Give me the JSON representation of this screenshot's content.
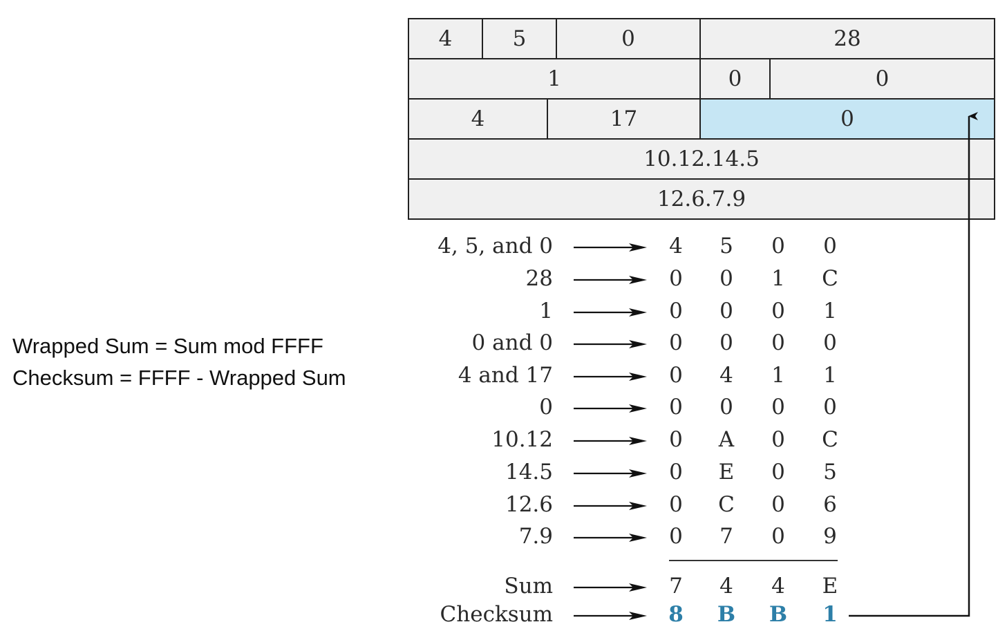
{
  "notes": {
    "line1": "Wrapped Sum = Sum mod FFFF",
    "line2": "Checksum = FFFF - Wrapped Sum"
  },
  "header": {
    "row1": [
      "4",
      "5",
      "0",
      "28"
    ],
    "row2": [
      "1",
      "0",
      "0"
    ],
    "row3": [
      "4",
      "17",
      "0"
    ],
    "row4": [
      "10.12.14.5"
    ],
    "row5": [
      "12.6.7.9"
    ]
  },
  "rows": [
    {
      "label": "4, 5, and 0",
      "digits": [
        "4",
        "5",
        "0",
        "0"
      ]
    },
    {
      "label": "28",
      "digits": [
        "0",
        "0",
        "1",
        "C"
      ]
    },
    {
      "label": "1",
      "digits": [
        "0",
        "0",
        "0",
        "1"
      ]
    },
    {
      "label": "0 and 0",
      "digits": [
        "0",
        "0",
        "0",
        "0"
      ]
    },
    {
      "label": "4 and 17",
      "digits": [
        "0",
        "4",
        "1",
        "1"
      ]
    },
    {
      "label": "0",
      "digits": [
        "0",
        "0",
        "0",
        "0"
      ]
    },
    {
      "label": "10.12",
      "digits": [
        "0",
        "A",
        "0",
        "C"
      ]
    },
    {
      "label": "14.5",
      "digits": [
        "0",
        "E",
        "0",
        "5"
      ]
    },
    {
      "label": "12.6",
      "digits": [
        "0",
        "C",
        "0",
        "6"
      ]
    },
    {
      "label": "7.9",
      "digits": [
        "0",
        "7",
        "0",
        "9"
      ]
    }
  ],
  "sum": {
    "label": "Sum",
    "digits": [
      "7",
      "4",
      "4",
      "E"
    ]
  },
  "checksum": {
    "label": "Checksum",
    "digits": [
      "8",
      "B",
      "B",
      "1"
    ]
  },
  "colors": {
    "highlight": "#c6e6f4",
    "checksum_digits": "#2d7fa8"
  }
}
